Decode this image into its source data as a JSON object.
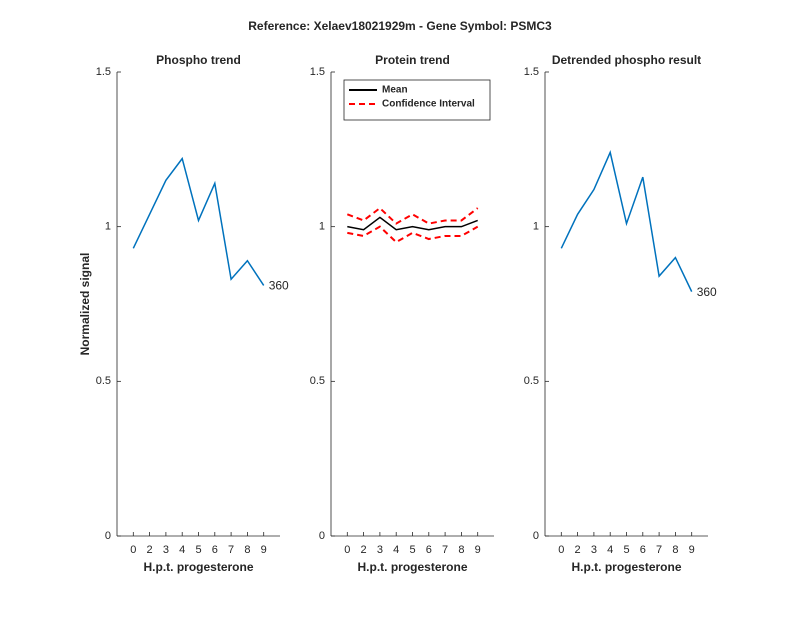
{
  "title": "Reference:  Xelaev18021929m - Gene Symbol:  PSMC3",
  "chart_data": [
    {
      "type": "line",
      "title": "Phospho trend",
      "xlabel": "H.p.t. progesterone",
      "ylabel": "Normalized signal",
      "categories": [
        "0",
        "2",
        "3",
        "4",
        "5",
        "6",
        "7",
        "8",
        "9"
      ],
      "series": [
        {
          "color": "#0072bd",
          "values": [
            0.93,
            1.04,
            1.15,
            1.22,
            1.02,
            1.14,
            0.83,
            0.89,
            0.81
          ]
        }
      ],
      "annotation": "360",
      "ylim": [
        0,
        1.5
      ],
      "yticks": [
        0,
        0.5,
        1,
        1.5
      ],
      "grid": false
    },
    {
      "type": "line",
      "title": "Protein trend",
      "xlabel": "H.p.t. progesterone",
      "categories": [
        "0",
        "2",
        "3",
        "4",
        "5",
        "6",
        "7",
        "8",
        "9"
      ],
      "series": [
        {
          "name": "Mean",
          "color": "#000000",
          "values": [
            1.0,
            0.99,
            1.03,
            0.99,
            1.0,
            0.99,
            1.0,
            1.0,
            1.02
          ]
        },
        {
          "name": "Confidence Interval",
          "color": "#ff0000",
          "dashed": true,
          "upper": [
            1.04,
            1.02,
            1.06,
            1.01,
            1.04,
            1.01,
            1.02,
            1.02,
            1.06
          ],
          "lower": [
            0.98,
            0.97,
            1.0,
            0.95,
            0.98,
            0.96,
            0.97,
            0.97,
            1.0
          ]
        }
      ],
      "legend": "upper left",
      "ylim": [
        0,
        1.5
      ],
      "yticks": [
        0,
        0.5,
        1,
        1.5
      ],
      "grid": false
    },
    {
      "type": "line",
      "title": "Detrended phospho result",
      "xlabel": "H.p.t. progesterone",
      "categories": [
        "0",
        "2",
        "3",
        "4",
        "5",
        "6",
        "7",
        "8",
        "9"
      ],
      "series": [
        {
          "color": "#0072bd",
          "values": [
            0.93,
            1.04,
            1.12,
            1.24,
            1.01,
            1.16,
            0.84,
            0.9,
            0.79
          ]
        }
      ],
      "annotation": "360",
      "ylim": [
        0,
        1.5
      ],
      "yticks": [
        0,
        0.5,
        1,
        1.5
      ],
      "grid": false
    }
  ]
}
